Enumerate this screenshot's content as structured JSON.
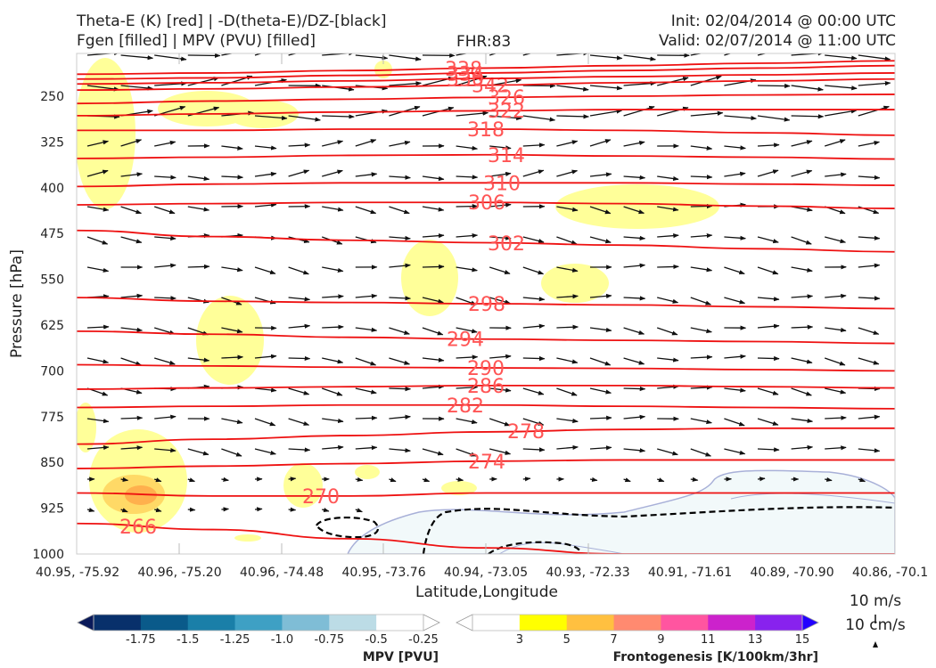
{
  "header": {
    "left_line1": "Theta-E (K) [red] | -D(theta-E)/DZ-[black]",
    "left_line2": "Fgen [filled] | MPV (PVU) [filled]",
    "center": "FHR:83",
    "right_line1": "Init: 02/04/2014 @ 00:00 UTC",
    "right_line2": "Valid: 02/07/2014 @ 11:00 UTC"
  },
  "chart_data": {
    "type": "cross-section",
    "xlabel": "Latitude,Longitude",
    "ylabel": "Pressure [hPa]",
    "x_ticks": [
      "40.95, -75.92",
      "40.96, -75.20",
      "40.96, -74.48",
      "40.95, -73.76",
      "40.94, -73.05",
      "40.93, -72.33",
      "40.91, -71.61",
      "40.89, -70.90",
      "40.86, -70.1"
    ],
    "y_ticks": [
      250,
      325,
      400,
      475,
      550,
      625,
      700,
      775,
      850,
      925,
      1000
    ],
    "ylim": [
      180,
      1000
    ],
    "theta_e_contours": [
      {
        "label": "342",
        "y": [
          240,
          238,
          235,
          232,
          228,
          225,
          222
        ]
      },
      {
        "label": "338",
        "y": [
          214,
          212,
          208,
          204,
          200,
          196,
          192
        ]
      },
      {
        "label": "334",
        "y": [
          222,
          220,
          216,
          212,
          208,
          204,
          200
        ]
      },
      {
        "label": "330",
        "y": [
          230,
          228,
          225,
          221,
          218,
          215,
          212
        ]
      },
      {
        "label": "326",
        "y": [
          262,
          258,
          255,
          252,
          250,
          248,
          247
        ]
      },
      {
        "label": "322",
        "y": [
          282,
          279,
          276,
          274,
          272,
          272,
          272
        ]
      },
      {
        "label": "318",
        "y": [
          306,
          306,
          304,
          304,
          306,
          310,
          314
        ]
      },
      {
        "label": "314",
        "y": [
          352,
          350,
          347,
          346,
          348,
          350,
          353
        ]
      },
      {
        "label": "310",
        "y": [
          398,
          394,
          392,
          392,
          392,
          394,
          396
        ]
      },
      {
        "label": "306",
        "y": [
          428,
          426,
          424,
          424,
          426,
          430,
          434
        ]
      },
      {
        "label": "302",
        "y": [
          470,
          480,
          486,
          490,
          494,
          500,
          505
        ]
      },
      {
        "label": "298",
        "y": [
          580,
          586,
          588,
          590,
          592,
          595,
          598
        ]
      },
      {
        "label": "294",
        "y": [
          635,
          640,
          645,
          648,
          650,
          652,
          655
        ]
      },
      {
        "label": "290",
        "y": [
          690,
          692,
          694,
          695,
          696,
          698,
          700
        ]
      },
      {
        "label": "286",
        "y": [
          730,
          728,
          726,
          724,
          724,
          726,
          728
        ]
      },
      {
        "label": "282",
        "y": [
          760,
          758,
          756,
          756,
          758,
          760,
          762
        ]
      },
      {
        "label": "278",
        "y": [
          820,
          812,
          806,
          800,
          796,
          794,
          794
        ]
      },
      {
        "label": "274",
        "y": [
          860,
          856,
          852,
          848,
          846,
          846,
          846
        ]
      },
      {
        "label": "270",
        "y": [
          900,
          905,
          905,
          900,
          900,
          900,
          900
        ]
      },
      {
        "label": "266",
        "y": [
          950,
          960,
          975,
          990,
          1000,
          1000,
          1000
        ]
      }
    ],
    "fgen_colorbar": {
      "title": "Frontogenesis [K/100km/3hr]",
      "levels": [
        "3",
        "5",
        "7",
        "9",
        "11",
        "13",
        "15"
      ],
      "colors": [
        "#ffff00",
        "#ffc040",
        "#ff8a70",
        "#ff55a0",
        "#cc22cc",
        "#8822ee",
        "#2200ff"
      ]
    },
    "mpv_colorbar": {
      "title": "MPV [PVU]",
      "levels": [
        "-1.75",
        "-1.5",
        "-1.25",
        "-1.0",
        "-0.75",
        "-0.5",
        "-0.25"
      ],
      "colors": [
        "#0a1a5a",
        "#08306b",
        "#0a5a8a",
        "#1a7fa8",
        "#3ea0c4",
        "#7fbdd6",
        "#bcdce6",
        "#ffffff"
      ]
    },
    "wind_scale": {
      "horizontal": "10 m/s",
      "vertical": "10 cm/s"
    }
  }
}
